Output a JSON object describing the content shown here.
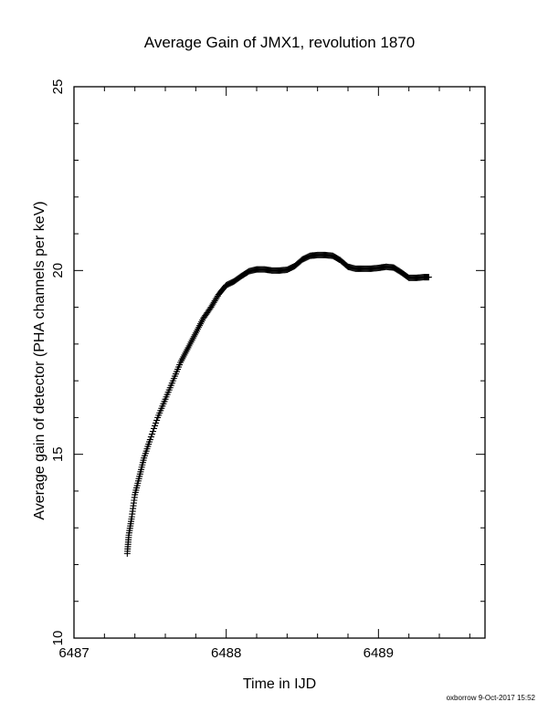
{
  "chart_data": {
    "type": "scatter",
    "title": "Average Gain of JMX1, revolution 1870",
    "xlabel": "Time in IJD",
    "ylabel": "Average gain of detector (PHA channels per keV)",
    "xlim": [
      6487,
      6489.7
    ],
    "ylim": [
      10,
      25
    ],
    "xticks": [
      "6487",
      "6488",
      "6489"
    ],
    "yticks": [
      "10",
      "15",
      "20",
      "25"
    ],
    "grid": false,
    "marker": "plus",
    "color": "#000000",
    "points": {
      "x": [
        6487.35,
        6487.36,
        6487.38,
        6487.4,
        6487.43,
        6487.46,
        6487.5,
        6487.55,
        6487.6,
        6487.65,
        6487.7,
        6487.75,
        6487.8,
        6487.85,
        6487.9,
        6487.95,
        6488.0,
        6488.05,
        6488.1,
        6488.15,
        6488.2,
        6488.25,
        6488.3,
        6488.35,
        6488.4,
        6488.45,
        6488.5,
        6488.55,
        6488.6,
        6488.65,
        6488.7,
        6488.75,
        6488.8,
        6488.85,
        6488.9,
        6488.95,
        6489.0,
        6489.05,
        6489.1,
        6489.15,
        6489.2,
        6489.25,
        6489.3,
        6489.33
      ],
      "y": [
        12.3,
        12.8,
        13.3,
        13.9,
        14.4,
        14.9,
        15.4,
        16.0,
        16.5,
        17.0,
        17.5,
        17.9,
        18.3,
        18.7,
        19.0,
        19.35,
        19.6,
        19.7,
        19.85,
        19.98,
        20.03,
        20.03,
        20.0,
        20.0,
        20.02,
        20.12,
        20.3,
        20.4,
        20.42,
        20.42,
        20.4,
        20.28,
        20.1,
        20.05,
        20.05,
        20.05,
        20.07,
        20.1,
        20.08,
        19.95,
        19.8,
        19.8,
        19.82,
        19.82
      ]
    }
  },
  "footer": {
    "stamp": "oxborrow  9-Oct-2017 15:52"
  }
}
